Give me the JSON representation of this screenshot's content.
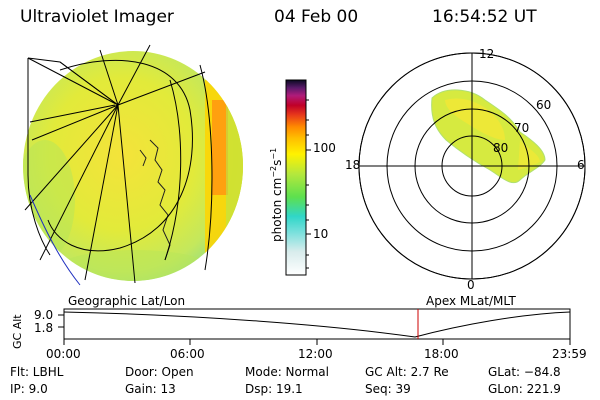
{
  "header": {
    "instrument": "Ultraviolet Imager",
    "date": "04 Feb 00",
    "time": "16:54:52 UT"
  },
  "colorbar": {
    "unit_label": "photon cm",
    "unit_exp1": "−2",
    "unit_mid": "s",
    "unit_exp2": "−1",
    "tick_100": "100",
    "tick_10": "10"
  },
  "polar_plot": {
    "mlt_labels": {
      "top": "12",
      "right": "6",
      "left": "18",
      "bottom": "0"
    },
    "lat_labels": {
      "l60": "60",
      "l70": "70",
      "l80": "80"
    }
  },
  "projection_labels": {
    "left": "Geographic Lat/Lon",
    "right": "Apex MLat/MLT"
  },
  "timeline": {
    "ylabel": "GC Alt",
    "ytick_top": "9.0",
    "ytick_bottom": "1.8",
    "xticks": [
      "00:00",
      "06:00",
      "12:00",
      "18:00",
      "23:59"
    ],
    "current_marker_color": "#cc0000"
  },
  "params": {
    "flt": "Flt: LBHL",
    "ip": "IP:  9.0",
    "door": "Door: Open",
    "gain": "Gain: 13",
    "mode": "Mode: Normal",
    "dsp": "Dsp:   19.1",
    "gcalt": "GC Alt: 2.7 Re",
    "seq": "Seq: 39",
    "glat": "GLat: −84.8",
    "glon": "GLon: 221.9"
  }
}
